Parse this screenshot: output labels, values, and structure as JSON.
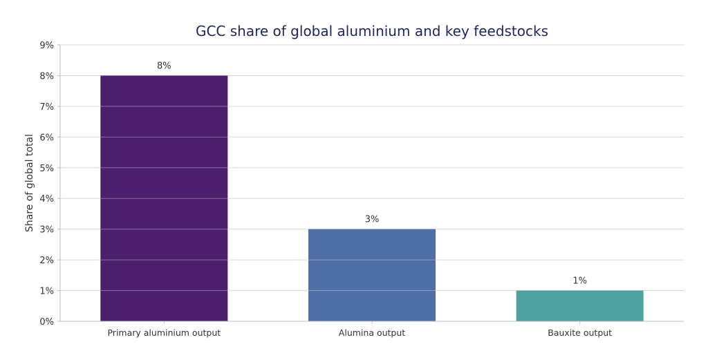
{
  "chart_data": {
    "type": "bar",
    "title": "GCC share of global aluminium and key feedstocks",
    "xlabel": "",
    "ylabel": "Share of global total",
    "categories": [
      "Primary aluminium output",
      "Alumina output",
      "Bauxite output"
    ],
    "values": [
      8,
      3,
      1
    ],
    "data_labels": [
      "8%",
      "3%",
      "1%"
    ],
    "colors": [
      "#4b1f6b",
      "#4f6ea5",
      "#4ea0a1"
    ],
    "ylim": [
      0,
      9
    ],
    "yticks": [
      0,
      1,
      2,
      3,
      4,
      5,
      6,
      7,
      8,
      9
    ],
    "ytick_labels": [
      "0%",
      "1%",
      "2%",
      "3%",
      "4%",
      "5%",
      "6%",
      "7%",
      "8%",
      "9%"
    ],
    "grid": true,
    "title_color": "#1f2660"
  }
}
